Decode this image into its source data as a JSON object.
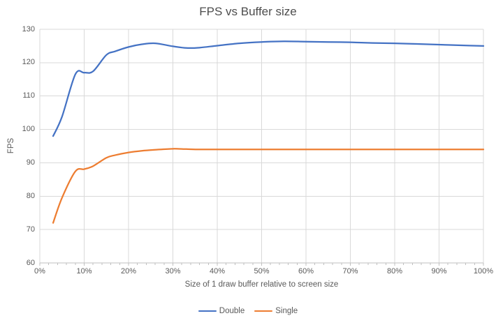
{
  "title": "FPS vs Buffer size",
  "colors": {
    "series_double": "#4472C4",
    "series_single": "#ED7D31",
    "gridline": "#D9D9D9",
    "axis_line": "#BFBFBF",
    "text": "#595959",
    "title_text": "#4D4D4D",
    "background": "#FFFFFF"
  },
  "chart_data": {
    "type": "line",
    "title": "FPS vs Buffer size",
    "xlabel": "Size of 1 draw buffer relative to screen size",
    "ylabel": "FPS",
    "xlim": [
      0,
      100
    ],
    "ylim": [
      60,
      130
    ],
    "x_ticks": [
      "0%",
      "10%",
      "20%",
      "30%",
      "40%",
      "50%",
      "60%",
      "70%",
      "80%",
      "90%",
      "100%"
    ],
    "y_ticks": [
      60,
      70,
      80,
      90,
      100,
      110,
      120,
      130
    ],
    "x_minor_tick_step_pct": 2,
    "grid": true,
    "smooth_lines": true,
    "legend_position": "bottom",
    "x": [
      3,
      5,
      8,
      10,
      12,
      15,
      17,
      20,
      23,
      26,
      30,
      33,
      36,
      40,
      45,
      50,
      55,
      60,
      65,
      70,
      75,
      80,
      85,
      90,
      95,
      100
    ],
    "series": [
      {
        "name": "Double",
        "color": "#4472C4",
        "values": [
          98,
          103.8,
          116.5,
          117,
          117.4,
          122.3,
          123.4,
          124.7,
          125.5,
          125.8,
          124.9,
          124.4,
          124.5,
          125.1,
          125.8,
          126.2,
          126.4,
          126.3,
          126.2,
          126.1,
          125.9,
          125.8,
          125.6,
          125.4,
          125.2,
          125
        ]
      },
      {
        "name": "Single",
        "color": "#ED7D31",
        "values": [
          72,
          79.5,
          87.4,
          88.1,
          89,
          91.5,
          92.3,
          93.1,
          93.6,
          93.9,
          94.2,
          94.1,
          94,
          94,
          94,
          94,
          94,
          94,
          94,
          94,
          94,
          94,
          94,
          94,
          94,
          94
        ]
      }
    ]
  }
}
